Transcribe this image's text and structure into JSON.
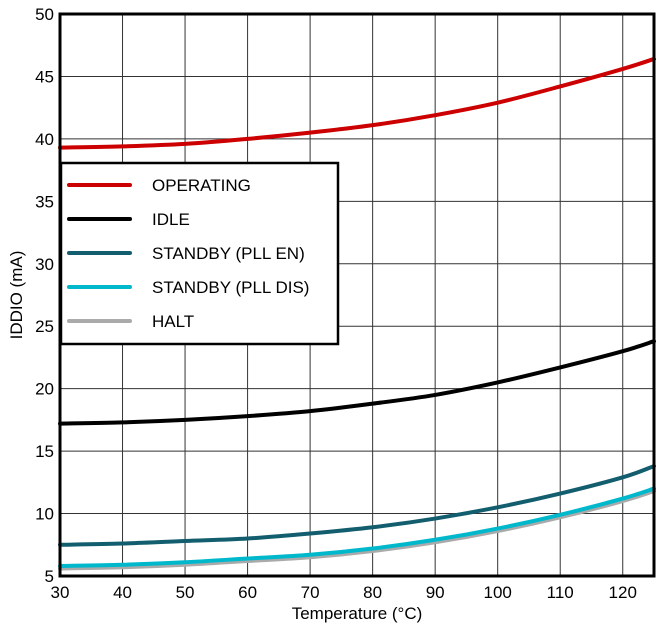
{
  "chart_data": {
    "type": "line",
    "title": "",
    "xlabel": "Temperature (°C)",
    "ylabel": "IDDIO (mA)",
    "xlim": [
      30,
      125
    ],
    "ylim": [
      5,
      50
    ],
    "grid": true,
    "legend_position": "upper-left-inside",
    "x_ticks": [
      30,
      40,
      50,
      60,
      70,
      80,
      90,
      100,
      110,
      120
    ],
    "y_ticks": [
      5,
      10,
      15,
      20,
      25,
      30,
      35,
      40,
      45,
      50
    ],
    "x": [
      30,
      40,
      50,
      60,
      70,
      80,
      90,
      100,
      110,
      120,
      125
    ],
    "series": [
      {
        "name": "OPERATING",
        "color": "#cc0000",
        "values": [
          39.3,
          39.4,
          39.6,
          40.0,
          40.5,
          41.1,
          41.9,
          42.9,
          44.2,
          45.6,
          46.4
        ]
      },
      {
        "name": "IDLE",
        "color": "#000000",
        "values": [
          17.2,
          17.3,
          17.5,
          17.8,
          18.2,
          18.8,
          19.5,
          20.5,
          21.7,
          23.0,
          23.8
        ]
      },
      {
        "name": "STANDBY (PLL EN)",
        "color": "#135e6e",
        "values": [
          7.5,
          7.6,
          7.8,
          8.0,
          8.4,
          8.9,
          9.6,
          10.5,
          11.6,
          12.9,
          13.8
        ]
      },
      {
        "name": "STANDBY (PLL DIS)",
        "color": "#00b8cc",
        "values": [
          5.8,
          5.9,
          6.1,
          6.4,
          6.7,
          7.2,
          7.9,
          8.8,
          9.9,
          11.2,
          12.0
        ]
      },
      {
        "name": "HALT",
        "color": "#aaaaaa",
        "values": [
          5.6,
          5.7,
          5.9,
          6.2,
          6.5,
          7.0,
          7.7,
          8.6,
          9.7,
          11.0,
          11.8
        ]
      }
    ]
  }
}
